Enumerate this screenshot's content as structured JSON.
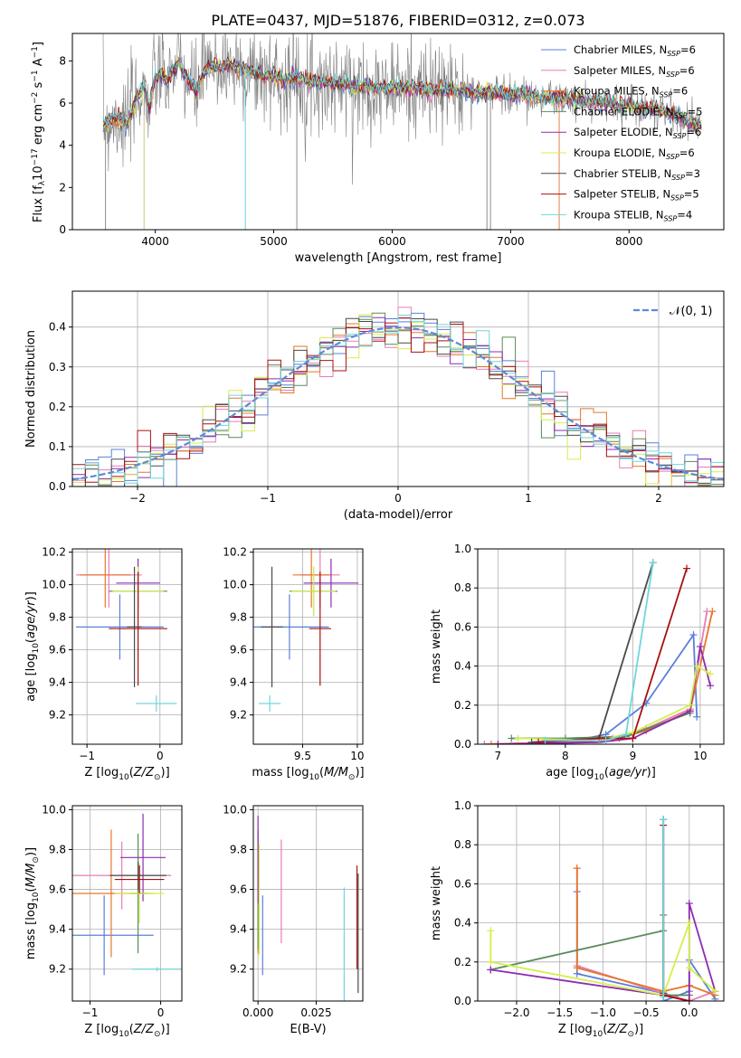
{
  "figure": {
    "title": "PLATE=0437, MJD=51876, FIBERID=0312, z=0.073"
  },
  "colors": {
    "Chabrier MILES": "#5b7fd8",
    "Salpeter MILES": "#e87cb6",
    "Kroupa MILES": "#e6762b",
    "Chabrier ELODIE": "#5a8a5a",
    "Salpeter ELODIE": "#8e2bb0",
    "Kroupa ELODIE": "#d4ef4a",
    "Chabrier STELIB": "#4a4a4a",
    "Salpeter STELIB": "#a81010",
    "Kroupa STELIB": "#6fd6dc",
    "data": "#808080",
    "normal": "#5b8bd6"
  },
  "chart_data": [
    {
      "id": "spectrum",
      "type": "line",
      "xlabel": "wavelength [Angstrom, rest frame]",
      "ylabel": "Flux [f",
      "ylabel_parts": [
        "Flux [f",
        "λ",
        "10",
        "−17",
        " erg cm",
        "−2",
        " s",
        "−1",
        " A",
        "−1",
        "]"
      ],
      "xlim": [
        3300,
        8800
      ],
      "ylim": [
        0,
        9.3
      ],
      "xticks": [
        4000,
        5000,
        6000,
        7000,
        8000
      ],
      "yticks": [
        0,
        2,
        4,
        6,
        8
      ],
      "grid": false,
      "legend_position": "right",
      "legend": [
        {
          "name": "Chabrier MILES",
          "nssp": "6"
        },
        {
          "name": "Salpeter MILES",
          "nssp": "6"
        },
        {
          "name": "Kroupa MILES",
          "nssp": "6"
        },
        {
          "name": "Chabrier ELODIE",
          "nssp": "5"
        },
        {
          "name": "Salpeter ELODIE",
          "nssp": "6"
        },
        {
          "name": "Kroupa ELODIE",
          "nssp": "6"
        },
        {
          "name": "Chabrier STELIB",
          "nssp": "3"
        },
        {
          "name": "Salpeter STELIB",
          "nssp": "5"
        },
        {
          "name": "Kroupa STELIB",
          "nssp": "4"
        }
      ],
      "model_x": [
        3560,
        3600,
        3650,
        3700,
        3750,
        3800,
        3850,
        3900,
        3950,
        4000,
        4050,
        4100,
        4150,
        4200,
        4250,
        4300,
        4350,
        4400,
        4450,
        4500,
        4600,
        4700,
        4800,
        4900,
        5000,
        5100,
        5200,
        5300,
        5400,
        5500,
        5600,
        5700,
        5800,
        5900,
        6000,
        6100,
        6200,
        6300,
        6400,
        6500,
        6600,
        6700,
        6800,
        6900,
        7000,
        7100,
        7200,
        7300,
        7400,
        7500,
        7600,
        7700,
        7800,
        7900,
        8000,
        8100,
        8200,
        8300,
        8400,
        8500,
        8600
      ],
      "model_y": [
        5.1,
        5.0,
        5.3,
        5.2,
        4.9,
        5.6,
        6.3,
        6.8,
        5.8,
        7.2,
        7.4,
        7.0,
        7.6,
        7.9,
        7.3,
        6.9,
        6.5,
        7.4,
        7.6,
        7.7,
        7.8,
        7.7,
        7.5,
        7.3,
        7.3,
        7.1,
        7.2,
        7.0,
        7.0,
        6.9,
        6.9,
        6.8,
        6.8,
        6.7,
        6.7,
        6.7,
        6.7,
        6.6,
        6.6,
        6.6,
        6.6,
        6.5,
        6.5,
        6.5,
        6.4,
        6.4,
        6.3,
        6.3,
        6.2,
        6.2,
        6.1,
        6.1,
        6.0,
        5.9,
        5.9,
        5.8,
        5.7,
        5.6,
        5.4,
        5.1,
        4.9
      ]
    },
    {
      "id": "residuals",
      "type": "line",
      "xlabel": "(data-model)/error",
      "ylabel": "Normed distribution",
      "xlim": [
        -2.5,
        2.5
      ],
      "ylim": [
        0,
        0.49
      ],
      "xticks": [
        -2,
        -1,
        0,
        1,
        2
      ],
      "yticks": [
        0.0,
        0.1,
        0.2,
        0.3,
        0.4
      ],
      "grid": true,
      "legend_position": "top-right",
      "legend_label": "N(0, 1)",
      "bin_width": 0.1
    },
    {
      "id": "age_vs_Z",
      "type": "scatter",
      "xlabel": "Z [log10(Z/Z⊙)]",
      "ylabel": "age  [log10(age/yr)]",
      "xlim": [
        -1.2,
        0.3
      ],
      "ylim": [
        9.02,
        10.22
      ],
      "xticks": [
        -1,
        0
      ],
      "yticks": [
        9.2,
        9.4,
        9.6,
        9.8,
        10.0,
        10.2
      ],
      "grid": true,
      "points": [
        {
          "model": "Chabrier MILES",
          "x": -0.55,
          "xerr": 0.6,
          "y": 9.74,
          "yerr": 0.2
        },
        {
          "model": "Salpeter MILES",
          "x": -0.7,
          "xerr": 0.45,
          "y": 10.06,
          "yerr": 0.2
        },
        {
          "model": "Kroupa MILES",
          "x": -0.75,
          "xerr": 0.35,
          "y": 10.06,
          "yerr": 0.2
        },
        {
          "model": "Chabrier ELODIE",
          "x": -0.3,
          "xerr": 0.4,
          "y": 9.96,
          "yerr": 0.15
        },
        {
          "model": "Salpeter ELODIE",
          "x": -0.3,
          "xerr": 0.3,
          "y": 10.01,
          "yerr": 0.15
        },
        {
          "model": "Kroupa ELODIE",
          "x": -0.3,
          "xerr": 0.35,
          "y": 9.96,
          "yerr": 0.15
        },
        {
          "model": "Chabrier STELIB",
          "x": -0.35,
          "xerr": 0.1,
          "y": 9.74,
          "yerr": 0.37
        },
        {
          "model": "Salpeter STELIB",
          "x": -0.3,
          "xerr": 0.4,
          "y": 9.73,
          "yerr": 0.35
        },
        {
          "model": "Kroupa STELIB",
          "x": -0.05,
          "xerr": 0.28,
          "y": 9.27,
          "yerr": 0.05
        }
      ]
    },
    {
      "id": "age_vs_mass",
      "type": "scatter",
      "xlabel": "mass [log10(M/M⊙)]",
      "ylabel": "",
      "xlim": [
        9.05,
        10.05
      ],
      "ylim": [
        9.02,
        10.22
      ],
      "xticks": [
        9.5,
        10.0
      ],
      "yticks": [
        9.2,
        9.4,
        9.6,
        9.8,
        10.0,
        10.2
      ],
      "grid": true,
      "points": [
        {
          "model": "Chabrier MILES",
          "x": 9.38,
          "xerr": 0.36,
          "y": 9.74,
          "yerr": 0.2
        },
        {
          "model": "Salpeter MILES",
          "x": 9.66,
          "xerr": 0.18,
          "y": 10.06,
          "yerr": 0.2
        },
        {
          "model": "Kroupa MILES",
          "x": 9.58,
          "xerr": 0.17,
          "y": 10.06,
          "yerr": 0.2
        },
        {
          "model": "Chabrier ELODIE",
          "x": 9.6,
          "xerr": 0.22,
          "y": 9.96,
          "yerr": 0.15
        },
        {
          "model": "Salpeter ELODIE",
          "x": 9.76,
          "xerr": 0.25,
          "y": 10.01,
          "yerr": 0.15
        },
        {
          "model": "Kroupa ELODIE",
          "x": 9.6,
          "xerr": 0.2,
          "y": 9.96,
          "yerr": 0.15
        },
        {
          "model": "Chabrier STELIB",
          "x": 9.22,
          "xerr": 0.1,
          "y": 9.74,
          "yerr": 0.37
        },
        {
          "model": "Salpeter STELIB",
          "x": 9.66,
          "xerr": 0.1,
          "y": 9.73,
          "yerr": 0.35
        },
        {
          "model": "Kroupa STELIB",
          "x": 9.2,
          "xerr": 0.1,
          "y": 9.27,
          "yerr": 0.05
        }
      ]
    },
    {
      "id": "massweight_vs_age",
      "type": "line",
      "xlabel": "age  [log10(age/yr)]",
      "ylabel": "mass weight",
      "xlim": [
        6.7,
        10.35
      ],
      "ylim": [
        0,
        1.0
      ],
      "xticks": [
        7,
        8,
        9,
        10
      ],
      "yticks": [
        0.0,
        0.2,
        0.4,
        0.6,
        0.8,
        1.0
      ],
      "grid": true,
      "series": [
        {
          "model": "Chabrier MILES",
          "x": [
            6.8,
            8.0,
            8.6,
            9.2,
            9.9,
            9.95
          ],
          "y": [
            0.0,
            0.01,
            0.05,
            0.21,
            0.56,
            0.14
          ]
        },
        {
          "model": "Salpeter MILES",
          "x": [
            6.8,
            8.0,
            8.7,
            9.2,
            9.85,
            10.1
          ],
          "y": [
            0.0,
            0.01,
            0.03,
            0.08,
            0.18,
            0.68
          ]
        },
        {
          "model": "Kroupa MILES",
          "x": [
            6.9,
            8.1,
            8.8,
            9.2,
            9.85,
            10.18
          ],
          "y": [
            0.0,
            0.01,
            0.03,
            0.07,
            0.17,
            0.68
          ]
        },
        {
          "model": "Chabrier ELODIE",
          "x": [
            7.2,
            8.0,
            8.9,
            9.85
          ],
          "y": [
            0.03,
            0.03,
            0.04,
            0.16
          ]
        },
        {
          "model": "Salpeter ELODIE",
          "x": [
            7.0,
            8.5,
            9.0,
            9.85,
            10.0,
            10.15
          ],
          "y": [
            0.0,
            0.01,
            0.03,
            0.17,
            0.5,
            0.3
          ]
        },
        {
          "model": "Kroupa ELODIE",
          "x": [
            7.3,
            8.5,
            9.0,
            9.85,
            9.95,
            10.15
          ],
          "y": [
            0.03,
            0.02,
            0.06,
            0.2,
            0.4,
            0.36
          ]
        },
        {
          "model": "Chabrier STELIB",
          "x": [
            7.5,
            8.5,
            9.3
          ],
          "y": [
            0.01,
            0.03,
            0.93
          ]
        },
        {
          "model": "Salpeter STELIB",
          "x": [
            7.6,
            8.5,
            9.0,
            9.8
          ],
          "y": [
            0.01,
            0.03,
            0.03,
            0.9
          ]
        },
        {
          "model": "Kroupa STELIB",
          "x": [
            7.7,
            8.6,
            8.9,
            9.3
          ],
          "y": [
            0.02,
            0.02,
            0.05,
            0.93
          ]
        }
      ]
    },
    {
      "id": "mass_vs_Z",
      "type": "scatter",
      "xlabel": "Z [log10(Z/Z⊙)]",
      "ylabel": "mass [log10(M/M⊙)]",
      "xlim": [
        -1.25,
        0.3
      ],
      "ylim": [
        9.04,
        10.02
      ],
      "xticks": [
        -1,
        0
      ],
      "yticks": [
        9.2,
        9.4,
        9.6,
        9.8,
        10.0
      ],
      "grid": true,
      "points": [
        {
          "model": "Chabrier MILES",
          "x": -0.8,
          "xerr": 0.7,
          "y": 9.37,
          "yerr": 0.2
        },
        {
          "model": "Salpeter MILES",
          "x": -0.55,
          "xerr": 0.7,
          "y": 9.67,
          "yerr": 0.17
        },
        {
          "model": "Kroupa MILES",
          "x": -0.7,
          "xerr": 0.6,
          "y": 9.58,
          "yerr": 0.32
        },
        {
          "model": "Chabrier ELODIE",
          "x": -0.32,
          "xerr": 0.12,
          "y": 9.58,
          "yerr": 0.3
        },
        {
          "model": "Salpeter ELODIE",
          "x": -0.25,
          "xerr": 0.32,
          "y": 9.76,
          "yerr": 0.22
        },
        {
          "model": "Kroupa ELODIE",
          "x": -0.3,
          "xerr": 0.35,
          "y": 9.58,
          "yerr": 0.15
        },
        {
          "model": "Chabrier STELIB",
          "x": -0.32,
          "xerr": 0.4,
          "y": 9.67,
          "yerr": 0.07
        },
        {
          "model": "Salpeter STELIB",
          "x": -0.3,
          "xerr": 0.35,
          "y": 9.65,
          "yerr": 0.07
        },
        {
          "model": "Kroupa STELIB",
          "x": -0.05,
          "xerr": 0.35,
          "y": 9.2,
          "yerr": 0.01
        }
      ]
    },
    {
      "id": "mass_vs_ebv",
      "type": "scatter",
      "xlabel": "E(B-V)",
      "ylabel": "",
      "xlim": [
        -0.002,
        0.045
      ],
      "ylim": [
        9.04,
        10.02
      ],
      "xticks": [
        0.0,
        0.025
      ],
      "xticklabels": [
        "0.000",
        "0.025"
      ],
      "yticks": [
        9.2,
        9.4,
        9.6,
        9.8,
        10.0
      ],
      "grid": true,
      "points": [
        {
          "model": "Chabrier MILES",
          "x": 0.002,
          "xerr": 0,
          "y": 9.37,
          "yerr": 0.2
        },
        {
          "model": "Salpeter MILES",
          "x": 0.01,
          "xerr": 0,
          "y": 9.59,
          "yerr": 0.26
        },
        {
          "model": "Kroupa MILES",
          "x": 0.0,
          "xerr": 0,
          "y": 9.58,
          "yerr": 0.3
        },
        {
          "model": "Chabrier ELODIE",
          "x": 0.0,
          "xerr": 0,
          "y": 9.6,
          "yerr": 0.3
        },
        {
          "model": "Salpeter ELODIE",
          "x": 0.0,
          "xerr": 0,
          "y": 9.75,
          "yerr": 0.22
        },
        {
          "model": "Kroupa ELODIE",
          "x": 0.0005,
          "xerr": 0,
          "y": 9.55,
          "yerr": 0.28
        },
        {
          "model": "Chabrier STELIB",
          "x": 0.043,
          "xerr": 0,
          "y": 9.38,
          "yerr": 0.3
        },
        {
          "model": "Salpeter STELIB",
          "x": 0.0425,
          "xerr": 0,
          "y": 9.46,
          "yerr": 0.26
        },
        {
          "model": "Kroupa STELIB",
          "x": 0.037,
          "xerr": 0,
          "y": 9.27,
          "yerr": 0.34
        }
      ]
    },
    {
      "id": "massweight_vs_Z",
      "type": "line",
      "xlabel": "Z [log10(Z/Z⊙)]",
      "ylabel": "mass weight",
      "xlim": [
        -2.45,
        0.4
      ],
      "ylim": [
        0,
        1.0
      ],
      "xticks": [
        -2.0,
        -1.5,
        -1.0,
        -0.5,
        0.0
      ],
      "xticklabels": [
        "−2.0",
        "−1.5",
        "−1.0",
        "−0.5",
        "0.0"
      ],
      "yticks": [
        0.0,
        0.2,
        0.4,
        0.6,
        0.8,
        1.0
      ],
      "grid": true,
      "series": [
        {
          "model": "Chabrier MILES",
          "x": [
            -1.3,
            -1.3,
            -0.3,
            -0.3,
            0.0,
            0.0,
            0.3
          ],
          "y": [
            0.56,
            0.14,
            0.04,
            0.0,
            0.05,
            0.21,
            0.01
          ]
        },
        {
          "model": "Salpeter MILES",
          "x": [
            -1.3,
            -1.3,
            -0.3,
            0.0,
            0.3
          ],
          "y": [
            0.68,
            0.18,
            0.04,
            0.0,
            0.05
          ]
        },
        {
          "model": "Kroupa MILES",
          "x": [
            -1.3,
            -1.3,
            -0.3,
            0.0,
            0.3
          ],
          "y": [
            0.68,
            0.17,
            0.05,
            0.08,
            0.03
          ]
        },
        {
          "model": "Chabrier ELODIE",
          "x": [
            -2.3,
            -0.3,
            -0.3,
            -0.3,
            0.0
          ],
          "y": [
            0.16,
            0.36,
            0.44,
            0.03,
            0.03
          ]
        },
        {
          "model": "Salpeter ELODIE",
          "x": [
            -2.3,
            -0.3,
            0.0,
            0.0,
            0.3
          ],
          "y": [
            0.16,
            0.03,
            0.0,
            0.5,
            0.05
          ]
        },
        {
          "model": "Kroupa ELODIE",
          "x": [
            -2.3,
            -2.3,
            -0.3,
            0.0,
            0.0,
            0.3
          ],
          "y": [
            0.36,
            0.2,
            0.03,
            0.4,
            0.17,
            0.05
          ]
        },
        {
          "model": "Chabrier STELIB",
          "x": [
            -0.3,
            -0.3
          ],
          "y": [
            0.93,
            0.04
          ]
        },
        {
          "model": "Salpeter STELIB",
          "x": [
            -0.3,
            -0.3,
            0.0
          ],
          "y": [
            0.9,
            0.03,
            0.0
          ]
        },
        {
          "model": "Kroupa STELIB",
          "x": [
            -0.3,
            -0.3
          ],
          "y": [
            0.93,
            0.02
          ]
        }
      ]
    }
  ]
}
